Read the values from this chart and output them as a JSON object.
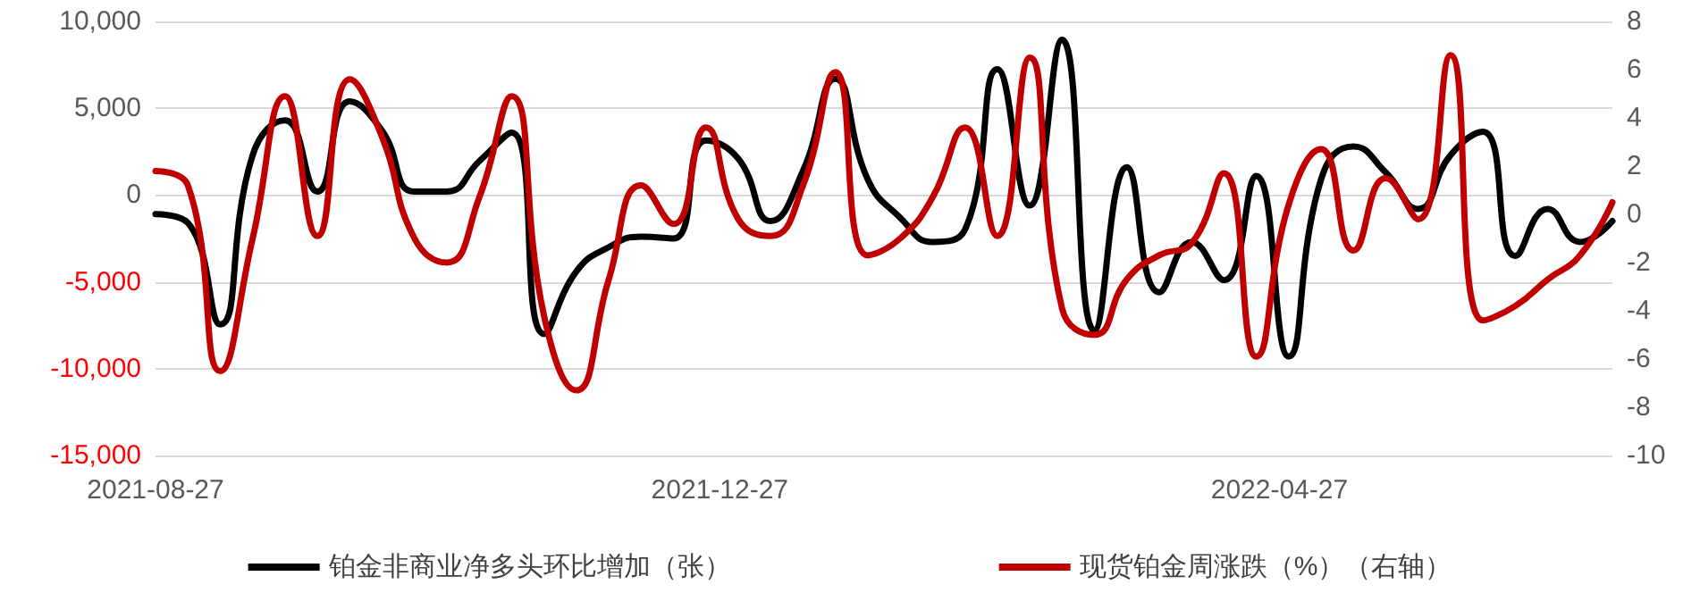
{
  "chart_data": {
    "type": "line",
    "x": [
      "2021-08-27",
      "2021-09-03",
      "2021-09-10",
      "2021-09-17",
      "2021-09-24",
      "2021-10-01",
      "2021-10-08",
      "2021-10-15",
      "2021-10-22",
      "2021-10-29",
      "2021-11-05",
      "2021-11-12",
      "2021-11-19",
      "2021-11-26",
      "2021-12-03",
      "2021-12-10",
      "2021-12-17",
      "2021-12-24",
      "2021-12-31",
      "2022-01-07",
      "2022-01-14",
      "2022-01-21",
      "2022-01-28",
      "2022-02-04",
      "2022-02-11",
      "2022-02-18",
      "2022-02-25",
      "2022-03-04",
      "2022-03-11",
      "2022-03-18",
      "2022-03-25",
      "2022-04-01",
      "2022-04-08",
      "2022-04-15",
      "2022-04-22",
      "2022-04-29",
      "2022-05-06",
      "2022-05-13",
      "2022-05-20",
      "2022-05-27",
      "2022-06-03",
      "2022-06-10",
      "2022-06-17",
      "2022-06-24",
      "2022-07-01",
      "2022-07-08"
    ],
    "series": [
      {
        "name": "铂金非商业净多头环比增加（张）",
        "color": "#000000",
        "values": [
          -1100,
          -1600,
          -7450,
          2300,
          4300,
          200,
          5400,
          3700,
          200,
          200,
          1950,
          3600,
          -8000,
          -4400,
          -3000,
          -2400,
          -2500,
          3150,
          2100,
          -1500,
          1400,
          6700,
          900,
          -1300,
          -2700,
          -2000,
          7250,
          -600,
          8950,
          -7800,
          1600,
          -5600,
          -2700,
          -4900,
          1100,
          -9300,
          900,
          2800,
          1300,
          -800,
          2300,
          3650,
          -3500,
          -800,
          -2700,
          -1500
        ]
      },
      {
        "name": "现货铂金周涨跌（%）（右轴）",
        "color": "#c00000",
        "axis": "y2",
        "values": [
          1.8,
          1.2,
          -6.5,
          -1.0,
          4.9,
          -0.9,
          5.6,
          3.2,
          -1.0,
          -2.0,
          0.7,
          4.9,
          -4.2,
          -7.3,
          -2.7,
          1.2,
          -0.4,
          3.6,
          -0.2,
          -0.9,
          1.2,
          5.9,
          -1.7,
          -1.0,
          0.7,
          3.6,
          -0.9,
          6.5,
          -3.9,
          -5.0,
          -2.7,
          -1.7,
          -1.2,
          1.7,
          -5.9,
          0.4,
          2.7,
          -1.5,
          1.5,
          -0.2,
          6.6,
          -4.4,
          -3.8,
          -2.7,
          -1.7,
          0.5
        ]
      }
    ],
    "xlim": [
      "2021-08-27",
      "2022-07-08"
    ],
    "xticks": [
      "2021-08-27",
      "2021-12-27",
      "2022-04-27"
    ],
    "ylim": [
      -15000,
      10000
    ],
    "yticks": [
      {
        "value": -15000,
        "label": "-15,000"
      },
      {
        "value": -10000,
        "label": "-10,000"
      },
      {
        "value": -5000,
        "label": "-5,000"
      },
      0,
      {
        "value": 5000,
        "label": "5,000"
      },
      {
        "value": 10000,
        "label": "10,000"
      }
    ],
    "y2lim": [
      -10,
      8
    ],
    "y2ticks": [
      -10,
      -8,
      -6,
      -4,
      -2,
      0,
      2,
      4,
      6,
      8
    ],
    "grid": "y",
    "legend": "bottom",
    "marker": "none",
    "line_style": "solid"
  }
}
